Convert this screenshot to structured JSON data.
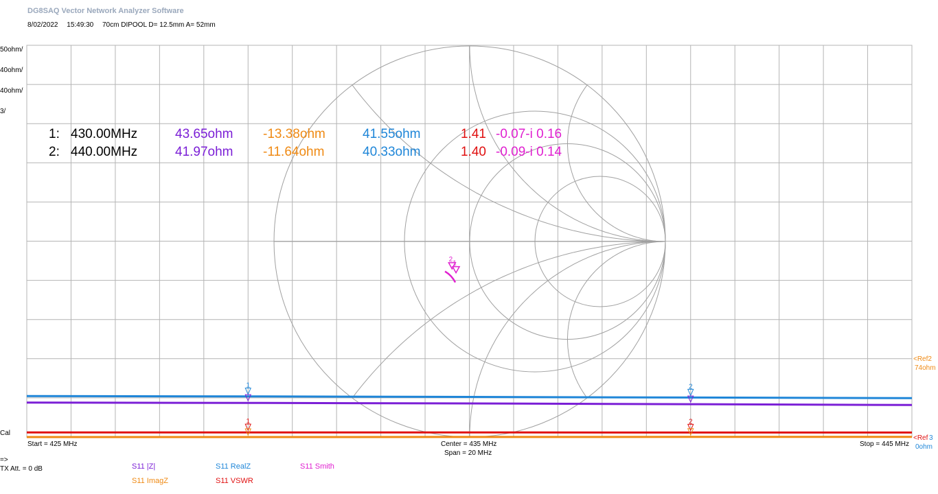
{
  "app_title": "DG8SAQ Vector Network Analyzer Software",
  "header": {
    "date": "8/02/2022",
    "time": "15:49:30",
    "description": "70cm DIPOOL D= 12.5mm A= 52mm"
  },
  "colors": {
    "grid": "#b4b4b4",
    "absz": "#7b1fd6",
    "imagz": "#ef8a14",
    "realz": "#1f86d8",
    "vswr": "#e01010",
    "smith": "#e020d0",
    "smith_grid": "#a0a0a0"
  },
  "left_scales": [
    {
      "label": "50ohm/",
      "color": "#7b1fd6"
    },
    {
      "label": "40ohm/",
      "color": "#ef8a14"
    },
    {
      "label": "40ohm/",
      "color": "#1f86d8"
    },
    {
      "label": "3/",
      "color": "#e01010"
    }
  ],
  "cal_label": "Cal",
  "ref_label": {
    "line1": "<Ref2",
    "line2": "74ohm"
  },
  "right_bottom_labels": {
    "ref": "<Ref",
    "ohm": "0ohm",
    "digit": "3"
  },
  "markers": [
    {
      "id": "1:",
      "freq": "430.00MHz",
      "absz": "43.65ohm",
      "imagz": "-13.38ohm",
      "realz": "41.55ohm",
      "vswr": "1.41",
      "smith": "-0.07-i 0.16"
    },
    {
      "id": "2:",
      "freq": "440.00MHz",
      "absz": "41.97ohm",
      "imagz": "-11.64ohm",
      "realz": "40.33ohm",
      "vswr": "1.40",
      "smith": "-0.09-i 0.14"
    }
  ],
  "footer": {
    "start": "Start = 425 MHz",
    "center": "Center = 435 MHz",
    "span": "Span = 20 MHz",
    "stop": "Stop = 445 MHz"
  },
  "tx": {
    "arrow": "=>",
    "att": "TX Att.  = 0 dB"
  },
  "legend": [
    {
      "label": "S11  |Z|",
      "color": "#7b1fd6"
    },
    {
      "label": "S11  RealZ",
      "color": "#1f86d8"
    },
    {
      "label": "S11  Smith",
      "color": "#e020d0"
    },
    {
      "label": "S11  ImagZ",
      "color": "#ef8a14"
    },
    {
      "label": "S11  VSWR",
      "color": "#e01010"
    }
  ],
  "chart_data": {
    "type": "line",
    "x_unit": "MHz",
    "xlim": [
      425,
      445
    ],
    "x": [
      425,
      430,
      435,
      440,
      445
    ],
    "markers_at": [
      430,
      440
    ],
    "series": [
      {
        "name": "S11  |Z|",
        "values": [
          44.0,
          43.65,
          42.9,
          41.97,
          40.9
        ]
      },
      {
        "name": "S11  RealZ",
        "values": [
          41.8,
          41.55,
          41.0,
          40.33,
          39.7
        ]
      },
      {
        "name": "S11  VSWR",
        "values": [
          1.41,
          1.41,
          1.41,
          1.4,
          1.4
        ]
      },
      {
        "name": "S11  ImagZ",
        "values": [
          -13.9,
          -13.38,
          -12.5,
          -11.64,
          -10.9
        ]
      }
    ],
    "smith_points": [
      {
        "marker": "1",
        "re": -0.07,
        "im": -0.16
      },
      {
        "marker": "2",
        "re": -0.09,
        "im": -0.14
      }
    ],
    "grid": true
  }
}
